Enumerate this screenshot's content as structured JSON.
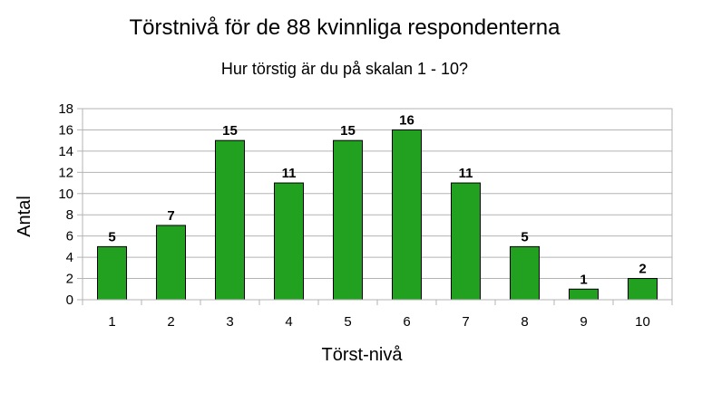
{
  "chart_data": {
    "type": "bar",
    "title": "Törstnivå för de 88 kvinnliga respondenterna",
    "subtitle": "Hur törstig är du på skalan 1 - 10?",
    "xlabel": "Törst-nivå",
    "ylabel": "Antal",
    "categories": [
      "1",
      "2",
      "3",
      "4",
      "5",
      "6",
      "7",
      "8",
      "9",
      "10"
    ],
    "values": [
      5,
      7,
      15,
      11,
      15,
      16,
      11,
      5,
      1,
      2
    ],
    "ylim": [
      0,
      18
    ],
    "yticks": [
      "0",
      "2",
      "4",
      "6",
      "8",
      "10",
      "12",
      "14",
      "16",
      "18"
    ],
    "grid": true,
    "data_labels": true,
    "bar_color": "#22a020"
  }
}
